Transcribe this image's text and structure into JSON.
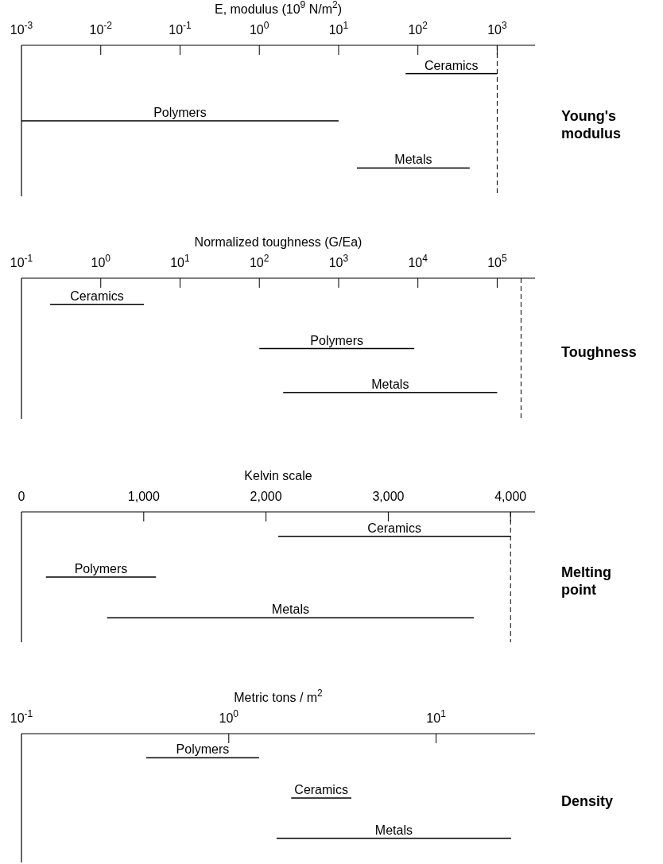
{
  "chart_data": [
    {
      "type": "bar",
      "orientation": "horizontal",
      "ylabel": "Young's modulus",
      "xlabel": "E, modulus (10$^{9}$ N/m$^{2}$)",
      "log": "x",
      "data_labels": false,
      "categories": [
        "Ceramics",
        "Polymers",
        "Metals"
      ],
      "base": [
        70,
        0.001,
        17
      ],
      "values": [
        930,
        9.999,
        433
      ],
      "color": "#000000",
      "xlim": [
        0.001,
        3000
      ],
      "xticks": [
        {
          "value": 0.001,
          "label": "10$^{-3}$"
        },
        {
          "value": 0.01,
          "label": "10$^{-2}$"
        },
        {
          "value": 0.1,
          "label": "10$^{-1}$"
        },
        {
          "value": 1,
          "label": "10$^{0}$"
        },
        {
          "value": 10,
          "label": "10$^{1}$"
        },
        {
          "value": 100,
          "label": "10$^{2}$"
        },
        {
          "value": 1000,
          "label": "10$^{3}$"
        }
      ],
      "ref_lines": [
        {
          "axis": "x",
          "value": 1000,
          "line_style": "dashed"
        }
      ]
    },
    {
      "type": "bar",
      "orientation": "horizontal",
      "ylabel": "Toughness",
      "xlabel": "Normalized toughness (G/Ea)",
      "log": "x",
      "categories": [
        "Ceramics",
        "Polymers",
        "Metals"
      ],
      "base": [
        0.23,
        100,
        200
      ],
      "values": [
        3.27,
        8900,
        99800
      ],
      "color": "#000000",
      "xlim": [
        0.1,
        300000
      ],
      "xticks": [
        {
          "value": 0.1,
          "label": "10$^{-1}$"
        },
        {
          "value": 1,
          "label": "10$^{0}$"
        },
        {
          "value": 10,
          "label": "10$^{1}$"
        },
        {
          "value": 100,
          "label": "10$^{2}$"
        },
        {
          "value": 1000,
          "label": "10$^{3}$"
        },
        {
          "value": 10000,
          "label": "10$^{4}$"
        },
        {
          "value": 100000,
          "label": "10$^{5}$"
        }
      ],
      "ref_lines": [
        {
          "axis": "x",
          "value": 200000,
          "line_style": "dashed"
        }
      ]
    },
    {
      "type": "bar",
      "orientation": "horizontal",
      "ylabel": "Melting point",
      "xlabel": "Kelvin scale",
      "categories": [
        "Ceramics",
        "Polymers",
        "Metals"
      ],
      "base": [
        2100,
        200,
        700
      ],
      "values": [
        1900,
        900,
        3000
      ],
      "color": "#000000",
      "xlim": [
        0,
        4200
      ],
      "xticks": [
        {
          "value": 0,
          "label": "0"
        },
        {
          "value": 1000,
          "label": "1,000"
        },
        {
          "value": 2000,
          "label": "2,000"
        },
        {
          "value": 3000,
          "label": "3,000"
        },
        {
          "value": 4000,
          "label": "4,000"
        }
      ],
      "ref_lines": [
        {
          "axis": "x",
          "value": 4000,
          "line_style": "dashed"
        }
      ]
    },
    {
      "type": "bar",
      "orientation": "horizontal",
      "ylabel": "Density",
      "xlabel": "Metric tons / m$^{2}$",
      "log": "x",
      "categories": [
        "Polymers",
        "Ceramics",
        "Metals"
      ],
      "base": [
        0.4,
        2,
        1.7
      ],
      "values": [
        1,
        1.9,
        21.3
      ],
      "color": "#000000",
      "xlim": [
        0.1,
        30
      ],
      "xticks": [
        {
          "value": 0.1,
          "label": "10$^{-1}$"
        },
        {
          "value": 1,
          "label": "10$^{0}$"
        },
        {
          "value": 10,
          "label": "10$^{1}$"
        }
      ]
    }
  ]
}
